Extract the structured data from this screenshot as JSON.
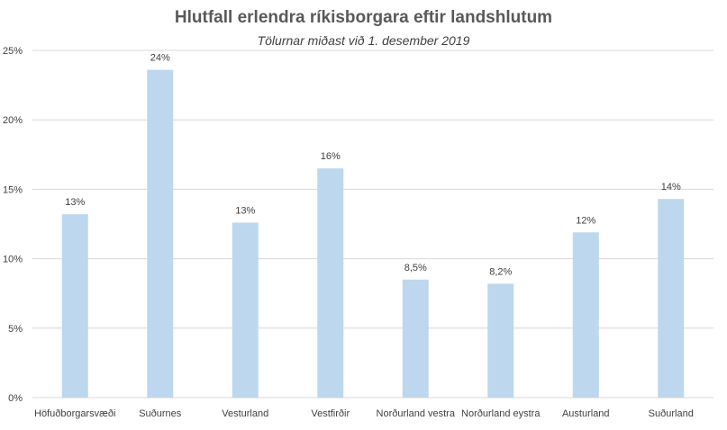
{
  "chart_data": {
    "type": "bar",
    "title": "Hlutfall erlendra ríkisborgara eftir landshlutum",
    "subtitle": "Tölurnar miðast við 1. desember 2019",
    "categories": [
      "Höfuðborgarsvæði",
      "Suðurnes",
      "Vesturland",
      "Vestfirðir",
      "Norðurland vestra",
      "Norðurland eystra",
      "Austurland",
      "Suðurland"
    ],
    "values": [
      13.2,
      23.6,
      12.6,
      16.5,
      8.5,
      8.2,
      11.9,
      14.3
    ],
    "data_labels": [
      "13%",
      "24%",
      "13%",
      "16%",
      "8,5%",
      "8,2%",
      "12%",
      "14%"
    ],
    "y_ticks": [
      0,
      5,
      10,
      15,
      20,
      25
    ],
    "y_tick_labels": [
      "0%",
      "5%",
      "10%",
      "15%",
      "20%",
      "25%"
    ],
    "ylim": [
      0,
      25
    ],
    "xlabel": "",
    "ylabel": "",
    "grid": true,
    "bar_color": "#bdd7ee",
    "grid_color": "#d9d9d9"
  }
}
